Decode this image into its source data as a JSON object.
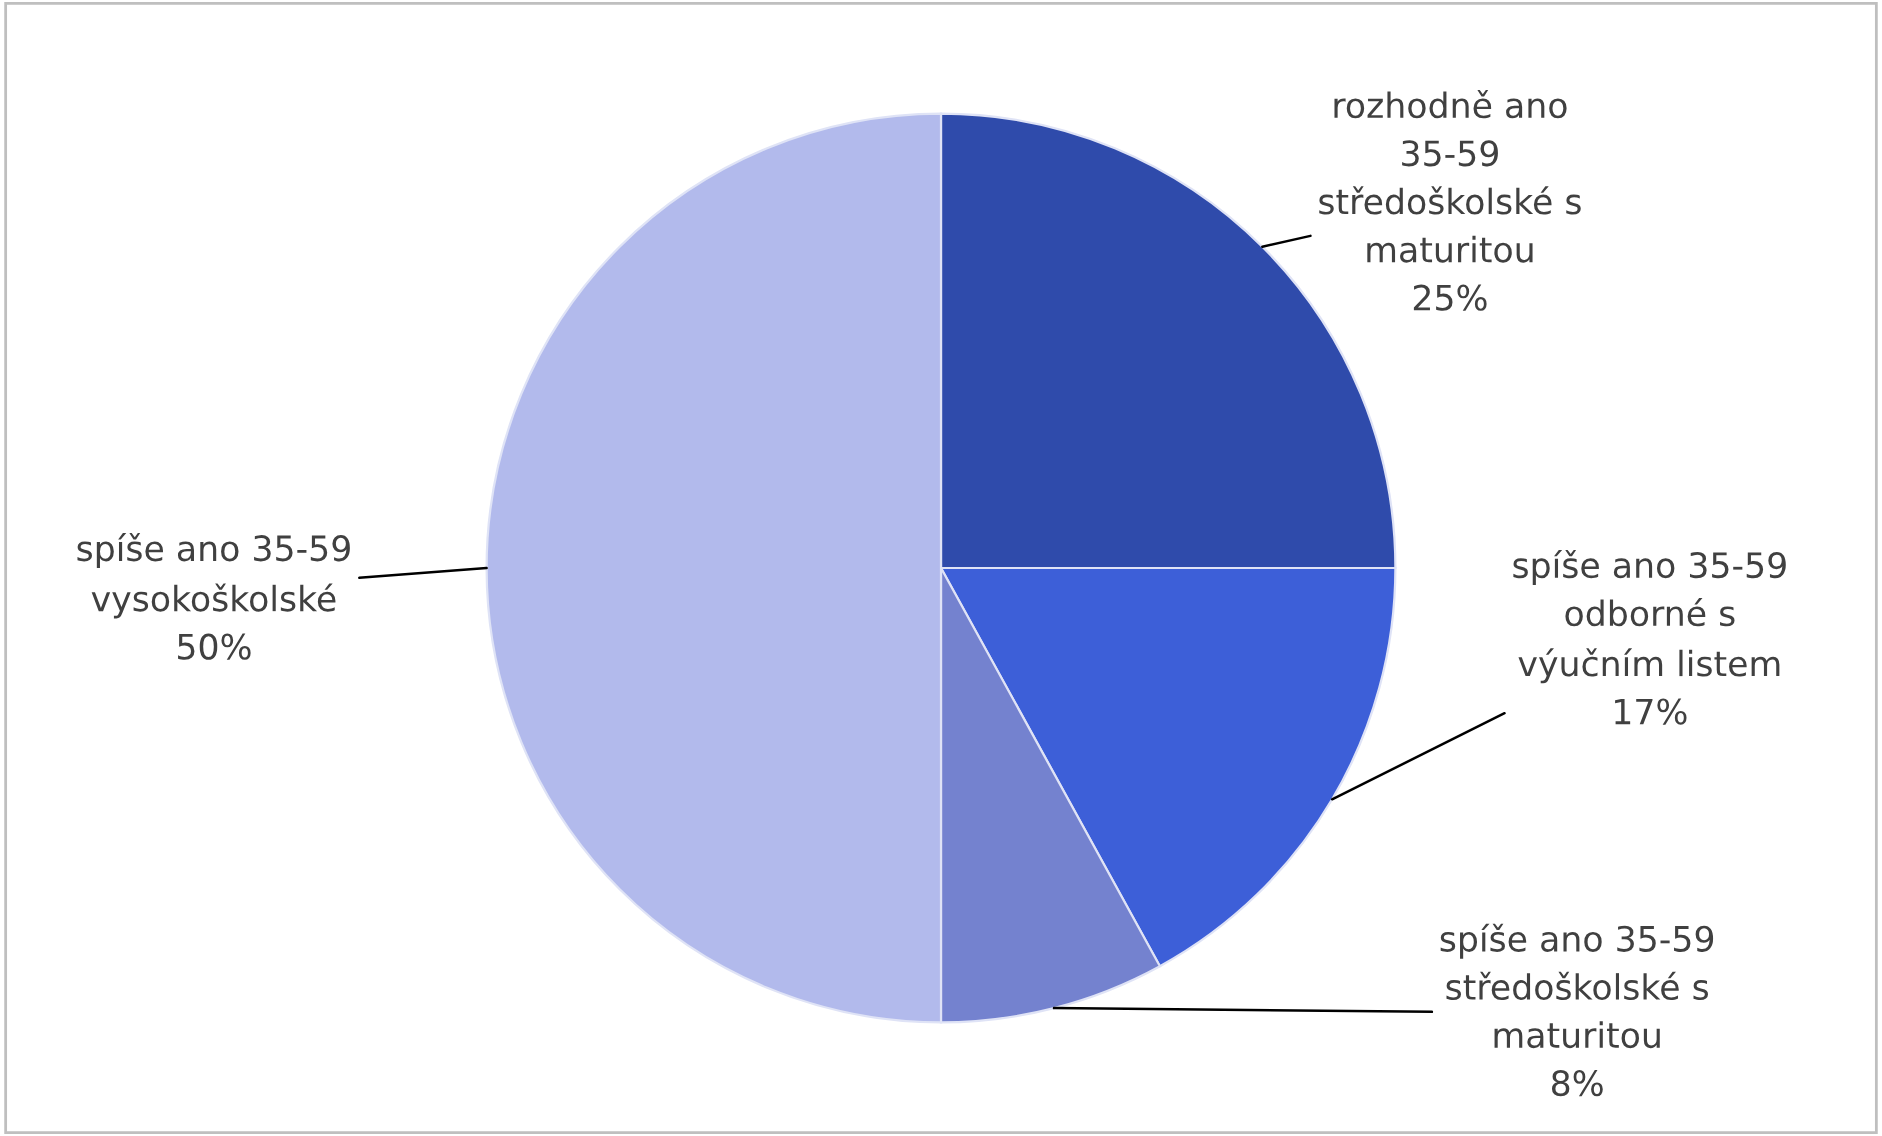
{
  "chart_data": {
    "type": "pie",
    "categories": [
      "rozhodně ano\n35-59\nstředoškolské s\nmaturitou",
      "spíše ano 35-59\nodborné s\nvýučním listem",
      "spíše ano 35-59\nstředoškolské s\nmaturitou",
      "spíše ano 35-59\nvysokoškolské"
    ],
    "values": [
      25,
      17,
      8,
      50
    ],
    "value_labels": [
      "25%",
      "17%",
      "8%",
      "50%"
    ],
    "colors": [
      "#2f4bab",
      "#3d5fd8",
      "#7482cf",
      "#b2baec"
    ],
    "legend": false
  }
}
